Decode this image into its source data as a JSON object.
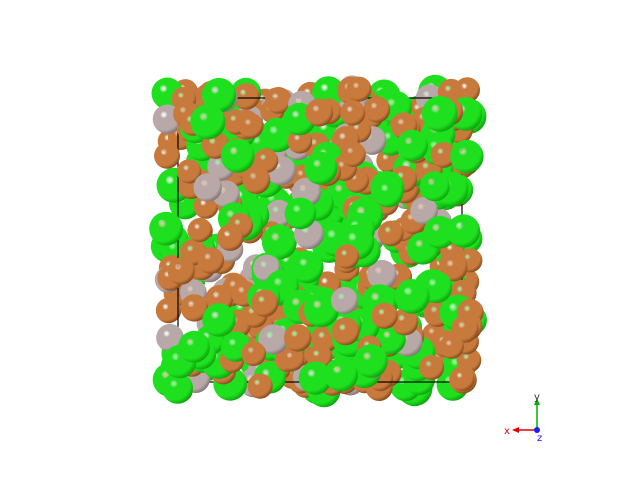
{
  "scene": {
    "background": "#ffffff",
    "atom_types": [
      {
        "name": "green-atom",
        "color": "#1ee01e",
        "shade": "#0a9a0a"
      },
      {
        "name": "copper-atom",
        "color": "#c87a3c",
        "shade": "#7a4218"
      },
      {
        "name": "gray-atom",
        "color": "#b8a8a8",
        "shade": "#7a6c6c"
      }
    ],
    "cell_box_color": "#000000"
  },
  "axes": {
    "x_label": "x",
    "y_label": "y",
    "z_label": "z",
    "x_color": "#e00000",
    "y_color": "#00b000",
    "z_color": "#1a1aff"
  }
}
